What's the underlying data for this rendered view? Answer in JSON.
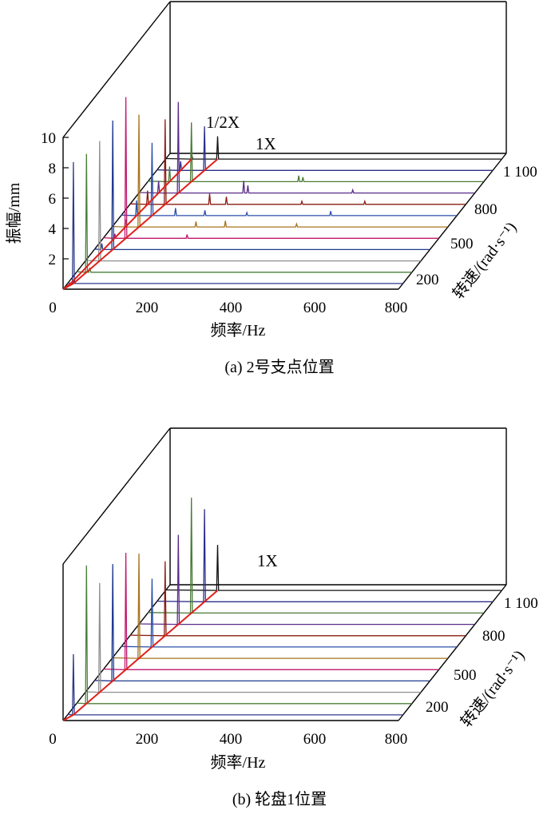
{
  "colors": [
    "#2e3a8c",
    "#4b7f3a",
    "#8f8f8f",
    "#1f3a8f",
    "#c0186e",
    "#a6741c",
    "#2b4fa8",
    "#8a1c12",
    "#5a2d8a",
    "#4a7a36",
    "#2c2e8a",
    "#111111"
  ],
  "ridge_color": "#e0201a",
  "chart_data": [
    {
      "type": "waterfall-spectrum",
      "caption": "(a) 2号支点位置",
      "xlabel": "频率/Hz",
      "ylabel": "振幅/mm",
      "zlabel": "转速/(rad·s⁻¹)",
      "xlim": [
        0,
        800
      ],
      "x_ticks": [
        "0",
        "200",
        "400",
        "600",
        "800"
      ],
      "y_ticks": [
        "2",
        "4",
        "6",
        "8",
        "10"
      ],
      "z_ticks": [
        "200",
        "500",
        "800",
        "1 100"
      ],
      "annotations": [
        "1/2X",
        "1X"
      ],
      "speed_slices": [
        {
          "peaks": [
            [
              14,
              8.0
            ],
            [
              16,
              0.3
            ]
          ]
        },
        {
          "peaks": [
            [
              24,
              7.8
            ],
            [
              32,
              0.3
            ]
          ]
        },
        {
          "peaks": [
            [
              34,
              7.9
            ]
          ]
        },
        {
          "peaks": [
            [
              44,
              8.5
            ],
            [
              18,
              0.4
            ]
          ]
        },
        {
          "peaks": [
            [
              54,
              9.3
            ],
            [
              28,
              0.3
            ],
            [
              200,
              0.25
            ]
          ]
        },
        {
          "peaks": [
            [
              64,
              7.4
            ],
            [
              32,
              0.5
            ],
            [
              200,
              0.35
            ],
            [
              270,
              0.4
            ],
            [
              440,
              0.2
            ]
          ]
        },
        {
          "peaks": [
            [
              74,
              4.8
            ],
            [
              37,
              1.0
            ],
            [
              130,
              0.5
            ],
            [
              200,
              0.35
            ],
            [
              300,
              0.2
            ],
            [
              500,
              0.3
            ]
          ]
        },
        {
          "peaks": [
            [
              84,
              5.6
            ],
            [
              42,
              0.9
            ],
            [
              190,
              0.7
            ],
            [
              230,
              0.5
            ],
            [
              410,
              0.2
            ],
            [
              560,
              0.2
            ]
          ]
        },
        {
          "peaks": [
            [
              94,
              6.0
            ],
            [
              47,
              0.8
            ],
            [
              250,
              0.8
            ],
            [
              260,
              0.5
            ],
            [
              510,
              0.2
            ]
          ]
        },
        {
          "peaks": [
            [
              104,
              3.9
            ],
            [
              52,
              1.0
            ],
            [
              360,
              0.4
            ],
            [
              370,
              0.3
            ]
          ]
        },
        {
          "peaks": [
            [
              114,
              2.9
            ],
            [
              57,
              0.6
            ]
          ]
        },
        {
          "peaks": [
            [
              124,
              1.5
            ],
            [
              62,
              0.4
            ]
          ]
        }
      ]
    },
    {
      "type": "waterfall-spectrum",
      "caption": "(b) 轮盘1位置",
      "xlabel": "频率/Hz",
      "ylabel": "",
      "zlabel": "转速/(rad·s⁻¹)",
      "xlim": [
        0,
        800
      ],
      "x_ticks": [
        "0",
        "200",
        "400",
        "600",
        "800"
      ],
      "y_ticks": [],
      "z_ticks": [
        "200",
        "500",
        "800",
        "1 100"
      ],
      "annotations": [
        "1X"
      ],
      "speed_slices": [
        {
          "peaks": [
            [
              14,
              4.0
            ]
          ]
        },
        {
          "peaks": [
            [
              24,
              9.1
            ]
          ]
        },
        {
          "peaks": [
            [
              34,
              7.2
            ]
          ]
        },
        {
          "peaks": [
            [
              44,
              7.7
            ]
          ]
        },
        {
          "peaks": [
            [
              54,
              7.7
            ]
          ]
        },
        {
          "peaks": [
            [
              64,
              6.9
            ]
          ]
        },
        {
          "peaks": [
            [
              74,
              4.5
            ]
          ]
        },
        {
          "peaks": [
            [
              84,
              4.9
            ]
          ]
        },
        {
          "peaks": [
            [
              94,
              5.9
            ]
          ]
        },
        {
          "peaks": [
            [
              104,
              7.6
            ]
          ]
        },
        {
          "peaks": [
            [
              114,
              6.1
            ]
          ]
        },
        {
          "peaks": [
            [
              124,
              3.0
            ]
          ]
        }
      ]
    }
  ]
}
